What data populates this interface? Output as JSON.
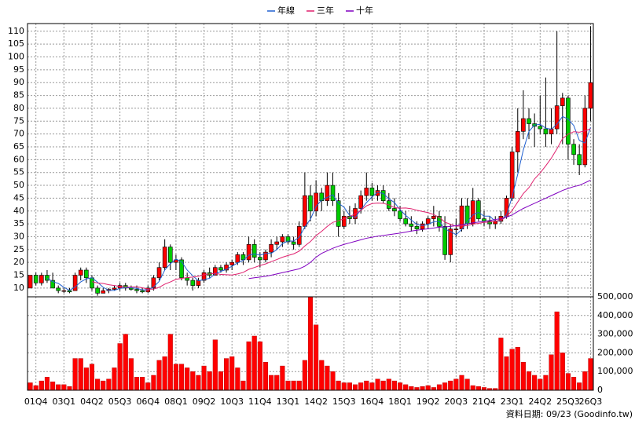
{
  "chart_data": [
    {
      "type": "candlestick",
      "grid": true,
      "legend": "top",
      "ylim": [
        6.6,
        113
      ],
      "yticks": [
        10,
        15,
        20,
        25,
        30,
        35,
        40,
        45,
        50,
        55,
        60,
        65,
        70,
        75,
        80,
        85,
        90,
        95,
        100,
        105,
        110
      ],
      "up_color": "#ff0000",
      "down_color": "#00cc00",
      "open": [
        10,
        15,
        12,
        15,
        13,
        10,
        9,
        9,
        9,
        15,
        17,
        14,
        10,
        8,
        9,
        9.5,
        10,
        11,
        10,
        9.5,
        9,
        8.5,
        10,
        14,
        18,
        26,
        20,
        21,
        14,
        13,
        11,
        13,
        16,
        15,
        18,
        17,
        19,
        20,
        23,
        21,
        27,
        22,
        21,
        24,
        27,
        28,
        30,
        28,
        27,
        34,
        46,
        40,
        47,
        44,
        50,
        44,
        34,
        38,
        37,
        41,
        46,
        49,
        46,
        48,
        44,
        41,
        40,
        37,
        35,
        34,
        33,
        35,
        37,
        38,
        34,
        23,
        33,
        33,
        42,
        35,
        44,
        37,
        36,
        35,
        36,
        38,
        45,
        63,
        71,
        76,
        74,
        73,
        72,
        70,
        72,
        81,
        84,
        66,
        62,
        58,
        80
      ],
      "high": [
        15,
        16,
        16,
        17,
        16,
        11,
        10,
        10,
        16,
        18,
        18,
        15,
        11,
        10,
        10,
        11,
        12,
        12,
        11,
        11,
        10,
        11,
        15,
        20,
        29,
        27,
        23,
        22,
        16,
        14,
        14,
        17,
        18,
        19,
        19,
        20,
        21,
        24,
        24,
        30,
        29,
        24,
        25,
        29,
        30,
        31,
        31,
        30,
        36,
        55,
        50,
        52,
        49,
        55,
        55,
        47,
        40,
        42,
        43,
        48,
        55,
        51,
        50,
        50,
        47,
        45,
        42,
        40,
        38,
        36,
        36,
        38,
        42,
        40,
        38,
        35,
        37,
        45,
        45,
        49,
        45,
        40,
        38,
        38,
        40,
        46,
        65,
        80,
        87,
        80,
        78,
        85,
        92,
        80,
        110,
        86,
        85,
        68,
        66,
        85,
        112
      ],
      "low": [
        10,
        11,
        11,
        12,
        10,
        8,
        8,
        8,
        9,
        13,
        12,
        9,
        7,
        8,
        8,
        9,
        9,
        9,
        9,
        8,
        8,
        8,
        9,
        13,
        17,
        17,
        17,
        13,
        11,
        9,
        10,
        12,
        14,
        15,
        16,
        16,
        17,
        19,
        19,
        20,
        20,
        18,
        20,
        22,
        25,
        26,
        27,
        25,
        26,
        33,
        36,
        38,
        40,
        42,
        42,
        30,
        33,
        35,
        35,
        39,
        44,
        44,
        44,
        43,
        40,
        38,
        36,
        34,
        32,
        31,
        32,
        33,
        34,
        32,
        21,
        20,
        30,
        32,
        33,
        34,
        36,
        34,
        33,
        33,
        35,
        37,
        44,
        55,
        68,
        68,
        65,
        70,
        65,
        66,
        70,
        66,
        60,
        58,
        54,
        57,
        75
      ],
      "close": [
        15,
        12,
        15,
        13,
        10,
        9,
        9,
        8.5,
        15,
        17,
        14,
        10,
        8,
        9,
        9.5,
        10,
        11,
        10,
        9.5,
        9,
        8.5,
        10,
        14,
        18,
        26,
        20,
        21,
        14,
        13,
        11,
        13,
        16,
        15,
        18,
        17,
        19,
        20,
        23,
        21,
        27,
        22,
        21,
        24,
        27,
        28,
        30,
        28,
        27,
        34,
        46,
        40,
        47,
        44,
        50,
        44,
        34,
        38,
        37,
        41,
        46,
        49,
        46,
        48,
        44,
        41,
        40,
        37,
        35,
        34,
        33,
        35,
        37,
        38,
        34,
        23,
        33,
        33,
        42,
        35,
        44,
        37,
        36,
        35,
        36,
        38,
        45,
        63,
        71,
        76,
        74,
        73,
        72,
        70,
        72,
        81,
        84,
        66,
        62,
        58,
        80,
        90
      ],
      "series": [
        {
          "name": "年線",
          "color": "#2060d0",
          "values": [
            null,
            null,
            null,
            13.8,
            12.5,
            11.8,
            10.3,
            9.1,
            10.4,
            12.4,
            13.6,
            14,
            12.3,
            10.3,
            9.1,
            9.1,
            9.9,
            10.1,
            10.1,
            9.9,
            9.3,
            9.3,
            10.4,
            12.6,
            17,
            19.5,
            21.3,
            20.3,
            17,
            14.8,
            12.8,
            13.3,
            13.8,
            15.5,
            16.5,
            17.3,
            18.5,
            19.8,
            20.8,
            22.8,
            23.3,
            22.8,
            23.5,
            23.5,
            25,
            27.3,
            28.3,
            28.3,
            29.8,
            33.8,
            36.8,
            41.8,
            44.3,
            45.3,
            46.3,
            43,
            41.5,
            38.3,
            37.5,
            40.5,
            43.3,
            45.5,
            47.3,
            46.8,
            44.8,
            43.3,
            40.5,
            38.3,
            36.5,
            34.8,
            34.3,
            34.8,
            35.8,
            36,
            33,
            32,
            30.8,
            32.8,
            35.8,
            38.5,
            39.5,
            38,
            38,
            36,
            36.3,
            38.5,
            45.5,
            54.3,
            63.8,
            71,
            73.5,
            73.8,
            72.3,
            71.8,
            73.8,
            76.8,
            75.8,
            73.3,
            67.5,
            66.5,
            72.5
          ]
        },
        {
          "name": "三年",
          "color": "#e0206e",
          "values": [
            null,
            null,
            null,
            null,
            null,
            null,
            null,
            null,
            null,
            null,
            null,
            12.5,
            12,
            11.8,
            11.3,
            11,
            10.6,
            10.4,
            10.4,
            10.5,
            10.1,
            9.6,
            9.6,
            10.3,
            11.5,
            12.4,
            13.4,
            13.8,
            14.1,
            14.3,
            14.6,
            15.2,
            15.5,
            15.8,
            15.3,
            15.2,
            15.1,
            15.5,
            16.1,
            17.3,
            18,
            18.8,
            19.4,
            20.3,
            21.1,
            22,
            22.7,
            23.3,
            24.4,
            26.4,
            28.1,
            30.4,
            32.1,
            34,
            35.6,
            36.2,
            37,
            37.8,
            38.9,
            40.3,
            42,
            42.9,
            43.1,
            43,
            42.4,
            41.3,
            41.1,
            41.2,
            40.9,
            40.3,
            39.8,
            39.4,
            38.6,
            37.5,
            35.7,
            34.8,
            34.1,
            34.2,
            34.3,
            34.9,
            35.2,
            35.6,
            35.7,
            36.1,
            36.4,
            37.8,
            40.2,
            43.5,
            46.8,
            49.1,
            52.5,
            54.8,
            57.6,
            60.6,
            64.2,
            68.2,
            69.9,
            70.9,
            70.7,
            71.2,
            72
          ]
        },
        {
          "name": "十年",
          "color": "#8000c0",
          "values": [
            null,
            null,
            null,
            null,
            null,
            null,
            null,
            null,
            null,
            null,
            null,
            null,
            null,
            null,
            null,
            null,
            null,
            null,
            null,
            null,
            null,
            null,
            null,
            null,
            null,
            null,
            null,
            null,
            null,
            null,
            null,
            null,
            null,
            null,
            null,
            null,
            null,
            null,
            null,
            13.7,
            14,
            14.3,
            14.6,
            15,
            15.5,
            16,
            16.5,
            17,
            17.5,
            18.5,
            20,
            22,
            23.5,
            24.5,
            25.5,
            26.3,
            27,
            27.6,
            28.2,
            28.8,
            29.4,
            29.8,
            30.2,
            30.5,
            30.8,
            31.1,
            31.4,
            31.8,
            32.2,
            32.5,
            32.8,
            33.1,
            33.4,
            33.7,
            33.8,
            34,
            34.3,
            34.7,
            35,
            35.4,
            35.7,
            36,
            36.3,
            36.7,
            37,
            37.6,
            38.5,
            39.8,
            41,
            42,
            43,
            44,
            45,
            46,
            47,
            48,
            48.8,
            49.5,
            50,
            51,
            52
          ]
        }
      ]
    },
    {
      "type": "bar",
      "grid": true,
      "color": "#ff0000",
      "ylim": [
        0,
        500000
      ],
      "yticks": [
        0,
        {
          "value": 100000,
          "label": "100,000"
        },
        {
          "value": 200000,
          "label": "200,000"
        },
        {
          "value": 300000,
          "label": "300,000"
        },
        {
          "value": 400000,
          "label": "400,000"
        },
        {
          "value": 500000,
          "label": "500,000"
        }
      ],
      "categories": [
        null,
        "01Q4",
        null,
        null,
        null,
        null,
        "03Q1",
        null,
        null,
        null,
        null,
        "04Q2",
        null,
        null,
        null,
        null,
        "05Q3",
        null,
        null,
        null,
        null,
        "06Q4",
        null,
        null,
        null,
        null,
        "08Q1",
        null,
        null,
        null,
        null,
        "09Q2",
        null,
        null,
        null,
        null,
        "10Q3",
        null,
        null,
        null,
        null,
        "11Q4",
        null,
        null,
        null,
        null,
        "13Q1",
        null,
        null,
        null,
        null,
        "14Q2",
        null,
        null,
        null,
        null,
        "15Q3",
        null,
        null,
        null,
        null,
        "16Q4",
        null,
        null,
        null,
        null,
        "18Q1",
        null,
        null,
        null,
        null,
        "19Q2",
        null,
        null,
        null,
        null,
        "20Q3",
        null,
        null,
        null,
        null,
        "21Q4",
        null,
        null,
        null,
        null,
        "23Q1",
        null,
        null,
        null,
        null,
        "24Q2",
        null,
        null,
        null,
        null,
        "25Q3",
        null,
        null,
        null,
        "26Q3"
      ],
      "values": [
        40000,
        25000,
        50000,
        70000,
        45000,
        30000,
        30000,
        20000,
        170000,
        170000,
        120000,
        140000,
        60000,
        50000,
        60000,
        120000,
        250000,
        300000,
        170000,
        70000,
        70000,
        40000,
        80000,
        160000,
        180000,
        300000,
        140000,
        140000,
        120000,
        100000,
        80000,
        130000,
        100000,
        270000,
        100000,
        170000,
        180000,
        120000,
        50000,
        260000,
        290000,
        260000,
        150000,
        80000,
        80000,
        130000,
        50000,
        50000,
        50000,
        160000,
        500000,
        350000,
        160000,
        130000,
        100000,
        50000,
        40000,
        40000,
        30000,
        40000,
        50000,
        40000,
        60000,
        50000,
        60000,
        50000,
        40000,
        30000,
        20000,
        15000,
        20000,
        25000,
        15000,
        30000,
        40000,
        50000,
        60000,
        80000,
        60000,
        25000,
        20000,
        15000,
        10000,
        10000,
        280000,
        180000,
        220000,
        230000,
        150000,
        100000,
        80000,
        60000,
        80000,
        190000,
        420000,
        200000,
        90000,
        70000,
        40000,
        100000,
        170000
      ]
    }
  ],
  "source": "資料日期: 09/23 (Goodinfo.tw)"
}
